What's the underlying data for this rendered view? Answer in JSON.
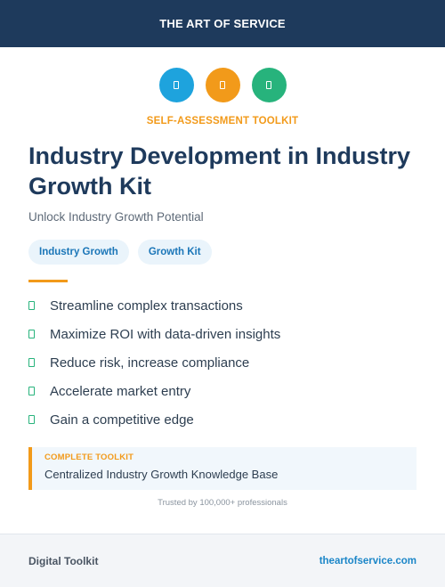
{
  "header": {
    "brand": "THE ART OF SERVICE"
  },
  "icons": [
    {
      "name": "document-icon",
      "color": "#1ea3dd"
    },
    {
      "name": "clipboard-icon",
      "color": "#f29a1a"
    },
    {
      "name": "toolkit-icon",
      "color": "#27b37c"
    }
  ],
  "kicker": "SELF-ASSESSMENT TOOLKIT",
  "title": "Industry Development in Industry Growth Kit",
  "subtitle": "Unlock Industry Growth Potential",
  "tags": [
    "Industry Growth",
    "Growth Kit"
  ],
  "benefits": [
    "Streamline complex transactions",
    "Maximize ROI with data-driven insights",
    "Reduce risk, increase compliance",
    "Accelerate market entry",
    "Gain a competitive edge"
  ],
  "callout": {
    "label": "COMPLETE TOOLKIT",
    "text": "Centralized Industry Growth Knowledge Base"
  },
  "trust": "Trusted by 100,000+ professionals",
  "footer": {
    "left": "Digital Toolkit",
    "right": "theartofservice.com"
  },
  "colors": {
    "navy": "#1e3a5c",
    "accent": "#f29a1a",
    "blue": "#1ea3dd",
    "green": "#27b37c"
  }
}
